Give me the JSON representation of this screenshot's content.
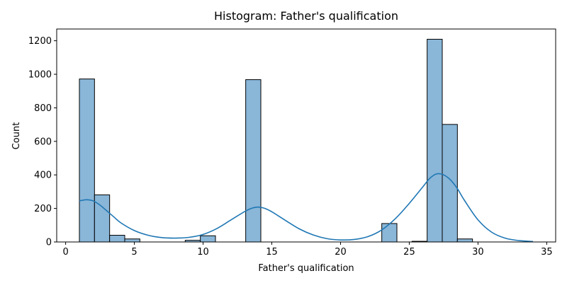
{
  "chart_data": {
    "type": "histogram",
    "title": "Histogram: Father's qualification",
    "xlabel": "Father's qualification",
    "ylabel": "Count",
    "xlim": [
      -0.65,
      35.65
    ],
    "ylim": [
      0,
      1270
    ],
    "xticks": [
      0,
      5,
      10,
      15,
      20,
      25,
      30,
      35
    ],
    "yticks": [
      0,
      200,
      400,
      600,
      800,
      1000,
      1200
    ],
    "bar_color": "#8ab6d8",
    "kde_color": "#1f77b4",
    "bins": [
      {
        "x0": 1.0,
        "x1": 2.1,
        "count": 972
      },
      {
        "x0": 2.1,
        "x1": 3.2,
        "count": 281
      },
      {
        "x0": 3.2,
        "x1": 4.3,
        "count": 40
      },
      {
        "x0": 4.3,
        "x1": 5.4,
        "count": 18
      },
      {
        "x0": 5.4,
        "x1": 6.5,
        "count": 0
      },
      {
        "x0": 6.5,
        "x1": 7.6,
        "count": 0
      },
      {
        "x0": 7.6,
        "x1": 8.7,
        "count": 0
      },
      {
        "x0": 8.7,
        "x1": 9.8,
        "count": 10
      },
      {
        "x0": 9.8,
        "x1": 10.9,
        "count": 37
      },
      {
        "x0": 10.9,
        "x1": 12.0,
        "count": 0
      },
      {
        "x0": 12.0,
        "x1": 13.1,
        "count": 0
      },
      {
        "x0": 13.1,
        "x1": 14.2,
        "count": 968
      },
      {
        "x0": 14.2,
        "x1": 15.3,
        "count": 0
      },
      {
        "x0": 15.3,
        "x1": 16.4,
        "count": 0
      },
      {
        "x0": 16.4,
        "x1": 17.5,
        "count": 0
      },
      {
        "x0": 17.5,
        "x1": 18.6,
        "count": 0
      },
      {
        "x0": 18.6,
        "x1": 19.7,
        "count": 0
      },
      {
        "x0": 19.7,
        "x1": 20.8,
        "count": 0
      },
      {
        "x0": 20.8,
        "x1": 21.9,
        "count": 0
      },
      {
        "x0": 21.9,
        "x1": 23.0,
        "count": 0
      },
      {
        "x0": 23.0,
        "x1": 24.1,
        "count": 110
      },
      {
        "x0": 24.1,
        "x1": 25.2,
        "count": 0
      },
      {
        "x0": 25.2,
        "x1": 26.3,
        "count": 4
      },
      {
        "x0": 26.3,
        "x1": 27.4,
        "count": 1209
      },
      {
        "x0": 27.4,
        "x1": 28.5,
        "count": 701
      },
      {
        "x0": 28.5,
        "x1": 29.6,
        "count": 18
      },
      {
        "x0": 29.6,
        "x1": 30.7,
        "count": 0
      },
      {
        "x0": 30.7,
        "x1": 31.8,
        "count": 0
      },
      {
        "x0": 31.8,
        "x1": 32.9,
        "count": 0
      },
      {
        "x0": 32.9,
        "x1": 34.0,
        "count": 0
      }
    ],
    "kde": {
      "x": [
        1.0,
        1.5,
        2.0,
        2.5,
        3.0,
        3.5,
        4.0,
        5.0,
        6.0,
        7.0,
        8.0,
        9.0,
        10.0,
        11.0,
        12.0,
        13.0,
        13.5,
        14.0,
        14.5,
        15.0,
        16.0,
        17.0,
        18.0,
        19.0,
        20.0,
        21.0,
        22.0,
        23.0,
        24.0,
        25.0,
        26.0,
        26.5,
        27.0,
        27.5,
        28.0,
        28.5,
        29.0,
        30.0,
        31.0,
        32.0,
        33.0,
        34.0
      ],
      "y": [
        245,
        252,
        245,
        220,
        185,
        150,
        115,
        68,
        40,
        26,
        23,
        28,
        45,
        80,
        130,
        180,
        200,
        208,
        200,
        180,
        128,
        78,
        42,
        20,
        12,
        15,
        32,
        72,
        140,
        230,
        330,
        380,
        406,
        400,
        370,
        318,
        250,
        132,
        58,
        22,
        8,
        3
      ]
    }
  }
}
